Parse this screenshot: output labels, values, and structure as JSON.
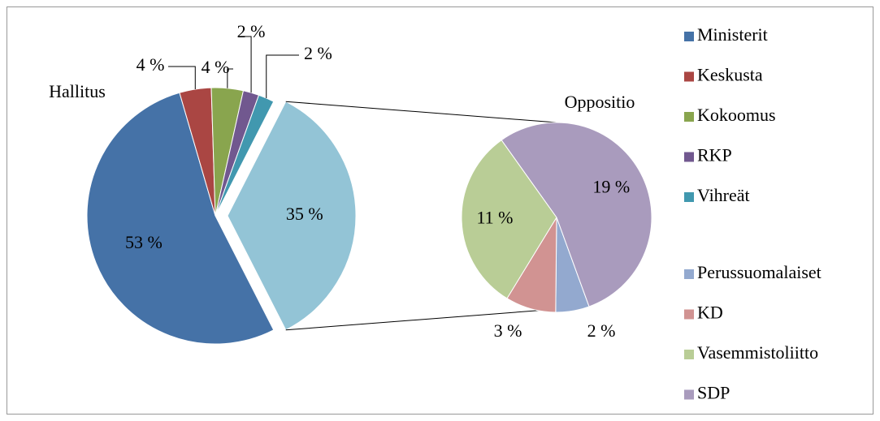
{
  "chart_data": {
    "type": "pie",
    "main": {
      "label": "Hallitus",
      "categories": [
        "Ministerit",
        "Keskusta",
        "Kokoomus",
        "RKP",
        "Vihreät"
      ],
      "values": [
        53,
        4,
        4,
        2,
        2
      ],
      "value_labels": [
        "53 %",
        "4 %",
        "4 %",
        "2 %",
        "2 %"
      ],
      "colors": [
        "#4572a7",
        "#aa4643",
        "#89a54e",
        "#71588f",
        "#4198af"
      ]
    },
    "other": {
      "label": "Oppositio",
      "value": 35,
      "value_label": "35 %",
      "color": "#93c4d6",
      "categories": [
        "Perussuomalaiset",
        "KD",
        "Vasemmistoliitto",
        "SDP"
      ],
      "values": [
        2,
        3,
        11,
        19
      ],
      "value_labels": [
        "2 %",
        "3 %",
        "11 %",
        "19 %"
      ],
      "colors": [
        "#93a9cf",
        "#d19392",
        "#b9cd96",
        "#a99bbd"
      ]
    }
  }
}
